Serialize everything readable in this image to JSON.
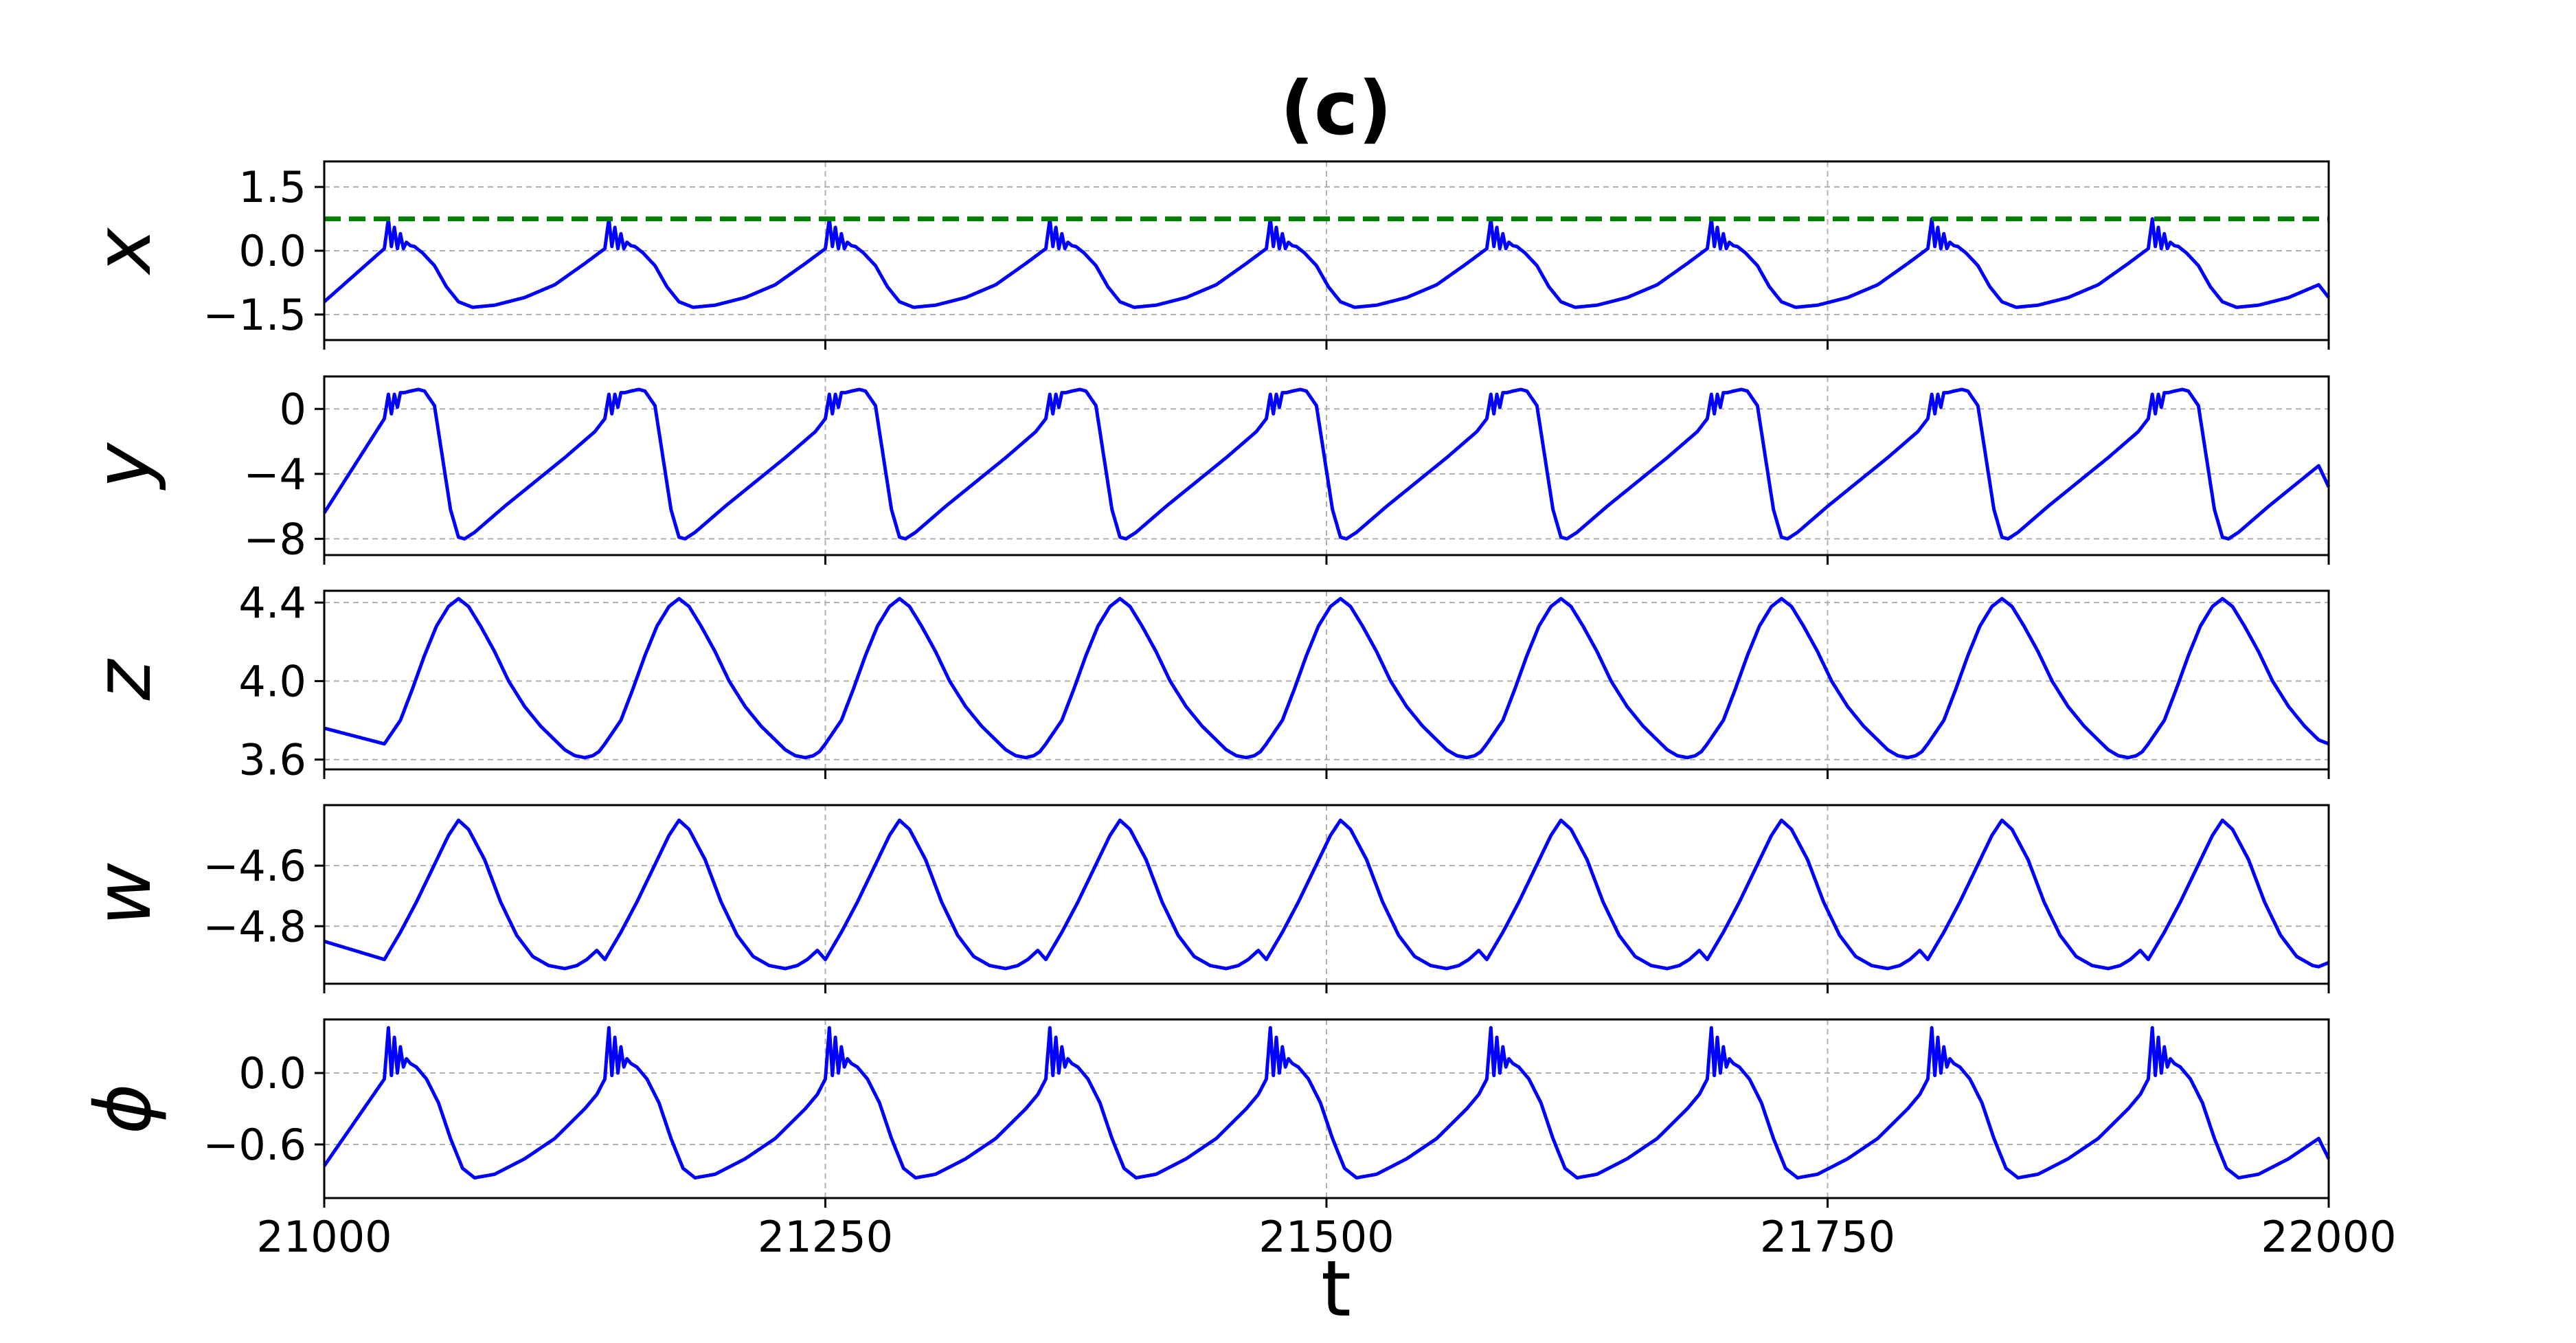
{
  "chart_data": {
    "type": "line",
    "title": "(c)",
    "xlabel": "t",
    "xlim": [
      21000,
      22000
    ],
    "x_ticks": [
      "21000",
      "21250",
      "21500",
      "21750",
      "22000"
    ],
    "x_tick_values": [
      21000,
      21250,
      21500,
      21750,
      22000
    ],
    "grid": true,
    "line_color": "#0000ff",
    "threshold_color": "#008000",
    "period": 110,
    "spike_times": [
      21030,
      21140,
      21250,
      21360,
      21470,
      21580,
      21690,
      21800,
      21910
    ],
    "panels": [
      {
        "ylabel": "x",
        "ylim": [
          -2.1,
          2.1
        ],
        "y_ticks": [
          "1.5",
          "0.0",
          "−1.5"
        ],
        "y_tick_values": [
          1.5,
          0.0,
          -1.5
        ],
        "threshold": 0.75,
        "waveform": {
          "t": [
            0,
            2,
            3.5,
            5,
            6.5,
            8,
            9.5,
            11,
            13,
            15,
            19,
            25,
            31,
            37,
            44,
            55,
            70,
            85,
            100,
            110
          ],
          "v": [
            0.05,
            0.75,
            0.1,
            0.55,
            0.05,
            0.4,
            0.05,
            0.2,
            0.12,
            0.1,
            -0.05,
            -0.35,
            -0.85,
            -1.2,
            -1.33,
            -1.28,
            -1.1,
            -0.8,
            -0.3,
            0.05
          ]
        },
        "start_value": -1.2,
        "end_value": -1.1
      },
      {
        "ylabel": "y",
        "ylim": [
          -9,
          2
        ],
        "y_ticks": [
          "0",
          "−4",
          "−8"
        ],
        "y_tick_values": [
          0,
          -4,
          -8
        ],
        "waveform": {
          "t": [
            0,
            2,
            3.5,
            5,
            6.5,
            8,
            10,
            13,
            17,
            20,
            25,
            29,
            33,
            37,
            40,
            45,
            60,
            75,
            90,
            105,
            110
          ],
          "v": [
            -0.6,
            0.9,
            -0.3,
            0.9,
            0.1,
            1.0,
            1.0,
            1.1,
            1.2,
            1.1,
            0.2,
            -3.0,
            -6.2,
            -7.9,
            -8.0,
            -7.6,
            -6.0,
            -4.5,
            -3.0,
            -1.4,
            -0.6
          ]
        },
        "start_value": -6.4,
        "end_value": -4.8
      },
      {
        "ylabel": "z",
        "ylim": [
          3.55,
          4.46
        ],
        "y_ticks": [
          "4.4",
          "4.0",
          "3.6"
        ],
        "y_tick_values": [
          4.4,
          4.0,
          3.6
        ],
        "waveform": {
          "t": [
            0,
            4,
            8,
            14,
            20,
            26,
            32,
            37,
            42,
            48,
            55,
            62,
            70,
            78,
            85,
            90,
            95,
            100,
            104,
            107,
            110
          ],
          "v": [
            3.68,
            3.74,
            3.8,
            3.96,
            4.13,
            4.28,
            4.38,
            4.42,
            4.38,
            4.28,
            4.15,
            4.0,
            3.87,
            3.77,
            3.7,
            3.65,
            3.62,
            3.61,
            3.62,
            3.64,
            3.68
          ]
        },
        "start_value": 3.76,
        "end_value": 3.68
      },
      {
        "ylabel": "w",
        "ylim": [
          -4.99,
          -4.4
        ],
        "y_ticks": [
          "−4.6",
          "−4.8"
        ],
        "y_tick_values": [
          -4.6,
          -4.8
        ],
        "waveform": {
          "t": [
            0,
            8,
            16,
            24,
            32,
            37,
            42,
            50,
            58,
            66,
            74,
            82,
            90,
            96,
            101,
            106,
            110
          ],
          "v": [
            -4.91,
            -4.82,
            -4.72,
            -4.61,
            -4.5,
            -4.45,
            -4.48,
            -4.58,
            -4.72,
            -4.83,
            -4.9,
            -4.93,
            -4.94,
            -4.93,
            -4.91,
            -4.88,
            -4.91
          ]
        },
        "start_value": -4.85,
        "end_value": -4.92
      },
      {
        "ylabel": "ϕ",
        "ylim": [
          -1.05,
          0.45
        ],
        "y_ticks": [
          "0.0",
          "−0.6"
        ],
        "y_tick_values": [
          0.0,
          -0.6
        ],
        "waveform": {
          "t": [
            0,
            2,
            3.5,
            5,
            6.5,
            8,
            9.5,
            11,
            13,
            16,
            21,
            27,
            33,
            39,
            45,
            55,
            70,
            85,
            100,
            106,
            110
          ],
          "v": [
            -0.05,
            0.38,
            -0.02,
            0.3,
            0.0,
            0.22,
            0.05,
            0.12,
            0.08,
            0.05,
            -0.05,
            -0.25,
            -0.55,
            -0.8,
            -0.88,
            -0.85,
            -0.72,
            -0.55,
            -0.3,
            -0.18,
            -0.05
          ]
        },
        "start_value": -0.78,
        "end_value": -0.72
      }
    ]
  }
}
